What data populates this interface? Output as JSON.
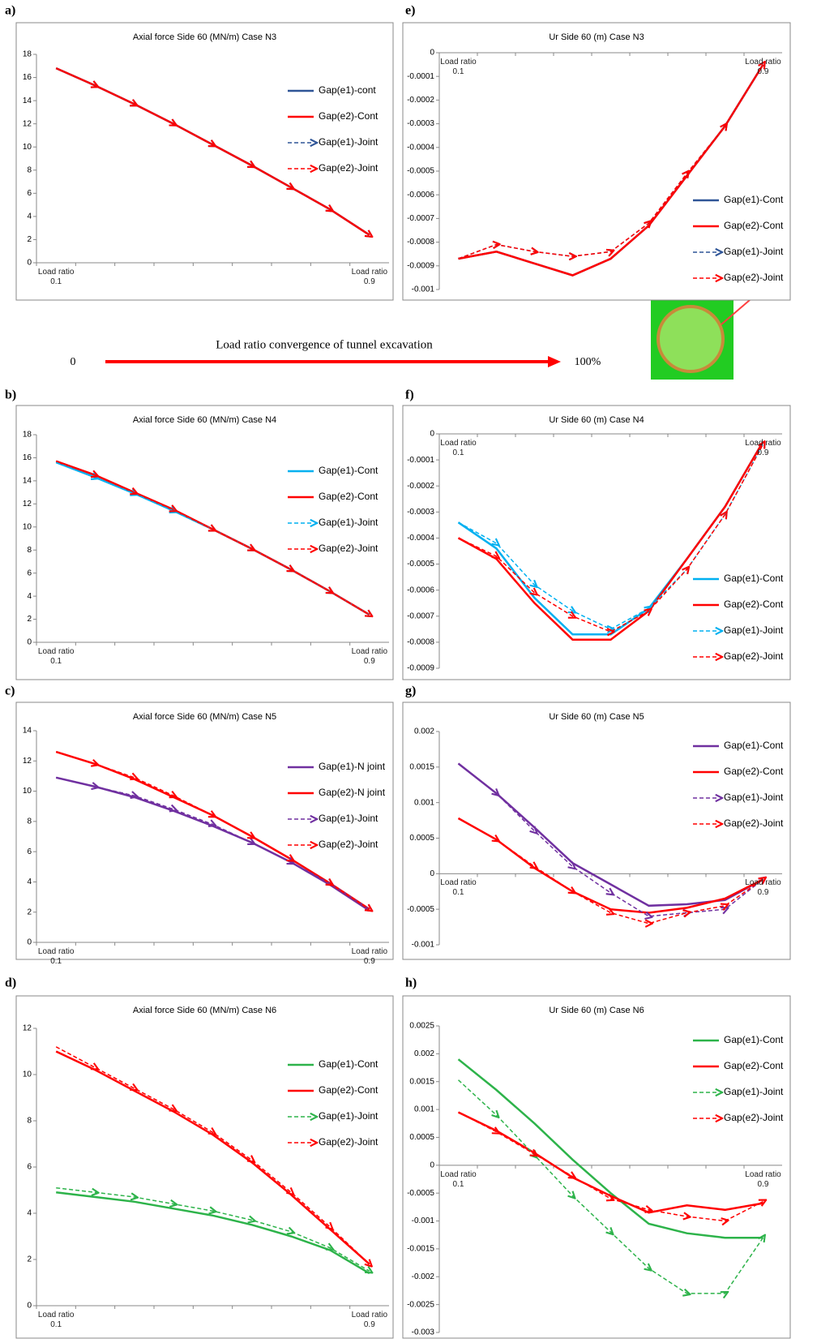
{
  "chart_data": [
    {
      "type": "line",
      "panel": "a)",
      "title": "Axial force Side 60 (MN/m) Case N3",
      "categories": [
        "Load ratio\n0.1",
        null,
        null,
        null,
        null,
        null,
        null,
        null,
        "Load ratio\n0.9"
      ],
      "ylim": [
        0,
        18
      ],
      "yticks": [
        0,
        2,
        4,
        6,
        8,
        10,
        12,
        14,
        16,
        18
      ],
      "grid": false,
      "legend": "upper right",
      "series": [
        {
          "name": "Gap(e1)-cont",
          "color": "#2f5597",
          "style": "solid",
          "values": [
            16.8,
            15.3,
            13.7,
            12.0,
            10.2,
            8.4,
            6.5,
            4.6,
            2.4
          ]
        },
        {
          "name": "Gap(e2)-Cont",
          "color": "#ff0000",
          "style": "solid",
          "values": [
            16.8,
            15.3,
            13.7,
            12.0,
            10.2,
            8.4,
            6.5,
            4.6,
            2.4
          ]
        },
        {
          "name": "Gap(e1)-Joint",
          "color": "#2f5597",
          "style": "dashed",
          "values": [
            16.8,
            15.3,
            13.7,
            12.0,
            10.2,
            8.4,
            6.5,
            4.6,
            2.4
          ]
        },
        {
          "name": "Gap(e2)-Joint",
          "color": "#ff0000",
          "style": "dashed",
          "values": [
            16.8,
            15.3,
            13.7,
            12.0,
            10.2,
            8.4,
            6.5,
            4.6,
            2.4
          ]
        }
      ]
    },
    {
      "type": "line",
      "panel": "b)",
      "title": "Axial force Side 60 (MN/m) Case N4",
      "categories": [
        "Load ratio\n0.1",
        null,
        null,
        null,
        null,
        null,
        null,
        null,
        "Load ratio\n0.9"
      ],
      "ylim": [
        0,
        18
      ],
      "yticks": [
        0,
        2,
        4,
        6,
        8,
        10,
        12,
        14,
        16,
        18
      ],
      "grid": false,
      "legend": "upper right",
      "series": [
        {
          "name": "Gap(e1)-Cont",
          "color": "#00b0f0",
          "style": "solid",
          "values": [
            15.6,
            14.3,
            12.9,
            11.4,
            9.8,
            8.1,
            6.3,
            4.4,
            2.4
          ]
        },
        {
          "name": "Gap(e2)-Cont",
          "color": "#ff0000",
          "style": "solid",
          "values": [
            15.7,
            14.5,
            13.0,
            11.5,
            9.8,
            8.1,
            6.3,
            4.4,
            2.4
          ]
        },
        {
          "name": "Gap(e1)-Joint",
          "color": "#00b0f0",
          "style": "dashed",
          "values": [
            15.6,
            14.3,
            12.9,
            11.4,
            9.8,
            8.1,
            6.3,
            4.4,
            2.4
          ]
        },
        {
          "name": "Gap(e2)-Joint",
          "color": "#ff0000",
          "style": "dashed",
          "values": [
            15.7,
            14.5,
            13.0,
            11.5,
            9.8,
            8.1,
            6.3,
            4.4,
            2.4
          ]
        }
      ]
    },
    {
      "type": "line",
      "panel": "c)",
      "title": "Axial force Side  60 (MN/m) Case N5",
      "categories": [
        "Load ratio\n0.1",
        null,
        null,
        null,
        null,
        null,
        null,
        null,
        "Load ratio\n0.9"
      ],
      "ylim": [
        0,
        14
      ],
      "yticks": [
        0,
        2,
        4,
        6,
        8,
        10,
        12,
        14
      ],
      "grid": false,
      "legend": "upper right",
      "series": [
        {
          "name": "Gap(e1)-N joint",
          "color": "#7030a0",
          "style": "solid",
          "values": [
            10.9,
            10.3,
            9.6,
            8.7,
            7.7,
            6.6,
            5.3,
            3.8,
            2.1
          ]
        },
        {
          "name": "Gap(e2)-N joint",
          "color": "#ff0000",
          "style": "solid",
          "values": [
            12.6,
            11.8,
            10.8,
            9.6,
            8.4,
            7.0,
            5.5,
            3.9,
            2.2
          ]
        },
        {
          "name": "Gap(e1)-Joint",
          "color": "#7030a0",
          "style": "dashed",
          "values": [
            10.9,
            10.3,
            9.7,
            8.8,
            7.8,
            6.6,
            5.3,
            3.9,
            2.2
          ]
        },
        {
          "name": "Gap(e2)-Joint",
          "color": "#ff0000",
          "style": "dashed",
          "values": [
            12.6,
            11.8,
            10.9,
            9.7,
            8.4,
            7.0,
            5.5,
            3.9,
            2.2
          ]
        }
      ]
    },
    {
      "type": "line",
      "panel": "d)",
      "title": "Axial force Side  60 (MN/m) Case N6",
      "categories": [
        "Load ratio\n0.1",
        null,
        null,
        null,
        null,
        null,
        null,
        null,
        "Load ratio\n0.9"
      ],
      "ylim": [
        0,
        12
      ],
      "yticks": [
        0,
        2,
        4,
        6,
        8,
        10,
        12
      ],
      "grid": false,
      "legend": "upper right",
      "series": [
        {
          "name": "Gap(e1)-Cont",
          "color": "#2db34a",
          "style": "solid",
          "values": [
            4.9,
            4.7,
            4.5,
            4.2,
            3.9,
            3.5,
            3.0,
            2.4,
            1.4
          ]
        },
        {
          "name": "Gap(e2)-Cont",
          "color": "#ff0000",
          "style": "solid",
          "values": [
            11.0,
            10.2,
            9.3,
            8.4,
            7.4,
            6.2,
            4.8,
            3.3,
            1.8
          ]
        },
        {
          "name": "Gap(e1)-Joint",
          "color": "#2db34a",
          "style": "dashed",
          "values": [
            5.1,
            4.9,
            4.7,
            4.4,
            4.1,
            3.7,
            3.2,
            2.5,
            1.5
          ]
        },
        {
          "name": "Gap(e2)-Joint",
          "color": "#ff0000",
          "style": "dashed",
          "values": [
            11.2,
            10.3,
            9.4,
            8.5,
            7.5,
            6.3,
            4.9,
            3.4,
            1.8
          ]
        }
      ]
    },
    {
      "type": "line",
      "panel": "e)",
      "title": "Ur Side 60 (m) Case N3",
      "categories": [
        "Load ratio\n0.1",
        null,
        null,
        null,
        null,
        null,
        null,
        null,
        "Load ratio\n0.9"
      ],
      "ylim": [
        -0.001,
        0
      ],
      "yticks": [
        0,
        -0.0001,
        -0.0002,
        -0.0003,
        -0.0004,
        -0.0005,
        -0.0006,
        -0.0007,
        -0.0008,
        -0.0009,
        -0.001
      ],
      "grid": false,
      "legend": "lower right",
      "series": [
        {
          "name": "Gap(e1)-Cont",
          "color": "#2f5597",
          "style": "solid",
          "values": [
            -0.00087,
            -0.00084,
            -0.00089,
            -0.00094,
            -0.00087,
            -0.00073,
            -0.00052,
            -0.00031,
            -5e-05
          ]
        },
        {
          "name": "Gap(e2)-Cont",
          "color": "#ff0000",
          "style": "solid",
          "values": [
            -0.00087,
            -0.00084,
            -0.00089,
            -0.00094,
            -0.00087,
            -0.00073,
            -0.00052,
            -0.00031,
            -5e-05
          ]
        },
        {
          "name": "Gap(e1)-Joint",
          "color": "#2f5597",
          "style": "dashed",
          "values": [
            -0.00087,
            -0.00081,
            -0.00084,
            -0.00086,
            -0.00084,
            -0.00072,
            -0.00051,
            -0.00031,
            -5e-05
          ]
        },
        {
          "name": "Gap(e2)-Joint",
          "color": "#ff0000",
          "style": "dashed",
          "values": [
            -0.00087,
            -0.00081,
            -0.00084,
            -0.00086,
            -0.00084,
            -0.00072,
            -0.00051,
            -0.00031,
            -5e-05
          ]
        }
      ]
    },
    {
      "type": "line",
      "panel": "f)",
      "title": "Ur Side 60 (m) Case N4",
      "categories": [
        "Load ratio\n0.1",
        null,
        null,
        null,
        null,
        null,
        null,
        null,
        "Load ratio\n0.9"
      ],
      "ylim": [
        -0.0009,
        0
      ],
      "yticks": [
        0,
        -0.0001,
        -0.0002,
        -0.0003,
        -0.0004,
        -0.0005,
        -0.0006,
        -0.0007,
        -0.0008,
        -0.0009
      ],
      "grid": false,
      "legend": "lower right",
      "series": [
        {
          "name": "Gap(e1)-Cont",
          "color": "#00b0f0",
          "style": "solid",
          "values": [
            -0.00034,
            -0.00044,
            -0.00063,
            -0.00077,
            -0.00077,
            -0.00067,
            -0.00048,
            -0.00028,
            -3e-05
          ]
        },
        {
          "name": "Gap(e2)-Cont",
          "color": "#ff0000",
          "style": "solid",
          "values": [
            -0.0004,
            -0.00048,
            -0.00065,
            -0.00079,
            -0.00079,
            -0.00068,
            -0.00048,
            -0.00028,
            -3e-05
          ]
        },
        {
          "name": "Gap(e1)-Joint",
          "color": "#00b0f0",
          "style": "dashed",
          "values": [
            -0.00034,
            -0.00042,
            -0.00058,
            -0.00068,
            -0.00075,
            -0.00067,
            -0.00052,
            -0.00031,
            -4e-05
          ]
        },
        {
          "name": "Gap(e2)-Joint",
          "color": "#ff0000",
          "style": "dashed",
          "values": [
            -0.0004,
            -0.00047,
            -0.00061,
            -0.0007,
            -0.00076,
            -0.00068,
            -0.00052,
            -0.00031,
            -4e-05
          ]
        }
      ]
    },
    {
      "type": "line",
      "panel": "g)",
      "title": "Ur Side 60 (m) Case N5",
      "categories": [
        "Load ratio\n0.1",
        null,
        null,
        null,
        null,
        null,
        null,
        null,
        "Load ratio\n0.9"
      ],
      "ylim": [
        -0.001,
        0.002
      ],
      "yticks": [
        -0.001,
        -0.0005,
        0,
        0.0005,
        0.001,
        0.0015,
        0.002
      ],
      "grid": false,
      "legend": "upper right",
      "series": [
        {
          "name": "Gap(e1)-Cont",
          "color": "#7030a0",
          "style": "solid",
          "values": [
            0.00155,
            0.00113,
            0.00065,
            0.00015,
            -0.00015,
            -0.00045,
            -0.00043,
            -0.00037,
            -8e-05
          ]
        },
        {
          "name": "Gap(e2)-Cont",
          "color": "#ff0000",
          "style": "solid",
          "values": [
            0.00078,
            0.00048,
            8e-05,
            -0.00025,
            -0.0005,
            -0.00055,
            -0.00048,
            -0.00035,
            -8e-05
          ]
        },
        {
          "name": "Gap(e1)-Joint",
          "color": "#7030a0",
          "style": "dashed",
          "values": [
            0.00155,
            0.00113,
            0.0006,
            0.0001,
            -0.00027,
            -0.0006,
            -0.00055,
            -0.0005,
            -8e-05
          ]
        },
        {
          "name": "Gap(e2)-Joint",
          "color": "#ff0000",
          "style": "dashed",
          "values": [
            0.00078,
            0.00048,
            0.0001,
            -0.00025,
            -0.00055,
            -0.0007,
            -0.00055,
            -0.00045,
            -8e-05
          ]
        }
      ]
    },
    {
      "type": "line",
      "panel": "h)",
      "title": "Ur Side  60 (m) Case N6",
      "categories": [
        "Load ratio\n0.1",
        null,
        null,
        null,
        null,
        null,
        null,
        null,
        "Load ratio\n0.9"
      ],
      "ylim": [
        -0.003,
        0.0025
      ],
      "yticks": [
        -0.003,
        -0.0025,
        -0.002,
        -0.0015,
        -0.001,
        -0.0005,
        0,
        0.0005,
        0.001,
        0.0015,
        0.002,
        0.0025
      ],
      "grid": false,
      "legend": "upper right",
      "series": [
        {
          "name": "Gap(e1)-Cont",
          "color": "#2db34a",
          "style": "solid",
          "values": [
            0.0019,
            0.00135,
            0.00075,
            0.0001,
            -0.0005,
            -0.00105,
            -0.00122,
            -0.0013,
            -0.0013
          ]
        },
        {
          "name": "Gap(e2)-Cont",
          "color": "#ff0000",
          "style": "solid",
          "values": [
            0.00095,
            0.00062,
            0.00022,
            -0.00022,
            -0.00055,
            -0.00085,
            -0.00072,
            -0.0008,
            -0.00068
          ]
        },
        {
          "name": "Gap(e1)-Joint",
          "color": "#2db34a",
          "style": "dashed",
          "values": [
            0.00153,
            0.0009,
            0.00018,
            -0.00055,
            -0.0012,
            -0.00185,
            -0.0023,
            -0.0023,
            -0.0013
          ]
        },
        {
          "name": "Gap(e2)-Joint",
          "color": "#ff0000",
          "style": "dashed",
          "values": [
            0.00095,
            0.0006,
            0.0002,
            -0.0002,
            -0.0006,
            -0.0008,
            -0.00092,
            -0.001,
            -0.00065
          ]
        }
      ]
    }
  ],
  "annotation": {
    "text": "Load ratio convergence of tunnel excavation",
    "start": "0",
    "end": "100%"
  }
}
